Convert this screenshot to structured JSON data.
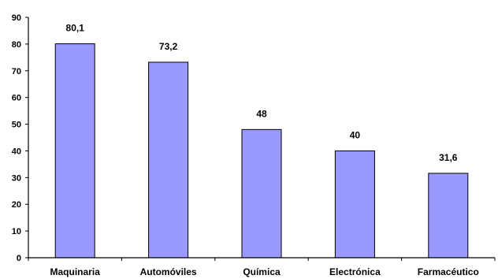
{
  "chart_data": {
    "type": "bar",
    "categories": [
      "Maquinaria",
      "Automóviles",
      "Química",
      "Electrónica",
      "Farmacéutico"
    ],
    "values": [
      80.1,
      73.2,
      48,
      40,
      31.6
    ],
    "data_labels": [
      "80,1",
      "73,2",
      "48",
      "40",
      "31,6"
    ],
    "title": "",
    "xlabel": "",
    "ylabel": "",
    "ylim": [
      0,
      90
    ],
    "yticks": [
      0,
      10,
      20,
      30,
      40,
      50,
      60,
      70,
      80,
      90
    ],
    "grid": false,
    "legend": "none",
    "bar_color": "#9999ff",
    "bar_stroke": "#000000"
  }
}
